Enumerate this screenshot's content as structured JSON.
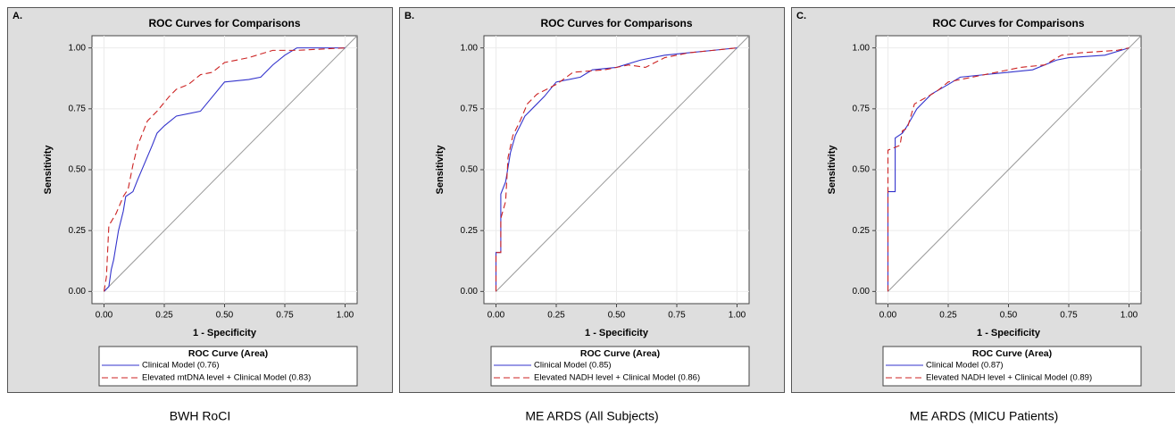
{
  "chart_data": [
    {
      "type": "line",
      "panel_label": "A.",
      "title": "ROC Curves for Comparisons",
      "xlabel": "1 - Specificity",
      "ylabel": "Sensitivity",
      "legend_title": "ROC Curve (Area)",
      "caption": "BWH RoCI",
      "xlim": [
        -0.05,
        1.05
      ],
      "ylim": [
        -0.05,
        1.05
      ],
      "grid": true,
      "xticks": [
        {
          "value": 0,
          "label": "0.00"
        },
        {
          "value": 0.25,
          "label": "0.25"
        },
        {
          "value": 0.5,
          "label": "0.50"
        },
        {
          "value": 0.75,
          "label": "0.75"
        },
        {
          "value": 1,
          "label": "1.00"
        }
      ],
      "yticks": [
        {
          "value": 0,
          "label": "0.00"
        },
        {
          "value": 0.25,
          "label": "0.25"
        },
        {
          "value": 0.5,
          "label": "0.50"
        },
        {
          "value": 0.75,
          "label": "0.75"
        },
        {
          "value": 1,
          "label": "1.00"
        }
      ],
      "series": [
        {
          "name": "Clinical Model  (0.76)",
          "color": "#3333cc",
          "dashed": false,
          "x": [
            0,
            0.02,
            0.03,
            0.04,
            0.06,
            0.08,
            0.09,
            0.12,
            0.14,
            0.17,
            0.2,
            0.22,
            0.25,
            0.3,
            0.4,
            0.45,
            0.5,
            0.6,
            0.65,
            0.7,
            0.75,
            0.8,
            1
          ],
          "values": [
            0,
            0.02,
            0.09,
            0.13,
            0.25,
            0.33,
            0.39,
            0.41,
            0.46,
            0.53,
            0.6,
            0.65,
            0.68,
            0.72,
            0.74,
            0.8,
            0.86,
            0.87,
            0.88,
            0.93,
            0.97,
            1,
            1
          ]
        },
        {
          "name": "Elevated mtDNA level + Clinical Model  (0.83)",
          "color": "#cc2222",
          "dashed": true,
          "x": [
            0,
            0.01,
            0.02,
            0.05,
            0.08,
            0.1,
            0.12,
            0.14,
            0.18,
            0.22,
            0.27,
            0.3,
            0.35,
            0.4,
            0.45,
            0.5,
            0.6,
            0.7,
            0.8,
            1
          ],
          "values": [
            0,
            0.06,
            0.27,
            0.32,
            0.39,
            0.42,
            0.52,
            0.6,
            0.7,
            0.74,
            0.8,
            0.83,
            0.85,
            0.89,
            0.9,
            0.94,
            0.96,
            0.99,
            0.99,
            1
          ]
        }
      ]
    },
    {
      "type": "line",
      "panel_label": "B.",
      "title": "ROC Curves for Comparisons",
      "xlabel": "1 - Specificity",
      "ylabel": "Sensitivity",
      "legend_title": "ROC Curve (Area)",
      "caption": "ME ARDS (All Subjects)",
      "xlim": [
        -0.05,
        1.05
      ],
      "ylim": [
        -0.05,
        1.05
      ],
      "grid": true,
      "xticks": [
        {
          "value": 0,
          "label": "0.00"
        },
        {
          "value": 0.25,
          "label": "0.25"
        },
        {
          "value": 0.5,
          "label": "0.50"
        },
        {
          "value": 0.75,
          "label": "0.75"
        },
        {
          "value": 1,
          "label": "1.00"
        }
      ],
      "yticks": [
        {
          "value": 0,
          "label": "0.00"
        },
        {
          "value": 0.25,
          "label": "0.25"
        },
        {
          "value": 0.5,
          "label": "0.50"
        },
        {
          "value": 0.75,
          "label": "0.75"
        },
        {
          "value": 1,
          "label": "1.00"
        }
      ],
      "series": [
        {
          "name": "Clinical Model  (0.85)",
          "color": "#3333cc",
          "dashed": false,
          "x": [
            0,
            0,
            0.02,
            0.02,
            0.04,
            0.06,
            0.08,
            0.1,
            0.12,
            0.15,
            0.2,
            0.25,
            0.35,
            0.4,
            0.5,
            0.6,
            0.7,
            0.8,
            0.9,
            1
          ],
          "values": [
            0,
            0.16,
            0.16,
            0.4,
            0.45,
            0.57,
            0.64,
            0.68,
            0.72,
            0.75,
            0.8,
            0.86,
            0.88,
            0.91,
            0.92,
            0.95,
            0.97,
            0.98,
            0.99,
            1
          ]
        },
        {
          "name": "Elevated NADH level + Clinical Model  (0.86)",
          "color": "#cc2222",
          "dashed": true,
          "x": [
            0,
            0,
            0.02,
            0.02,
            0.04,
            0.05,
            0.07,
            0.1,
            0.13,
            0.17,
            0.25,
            0.32,
            0.45,
            0.55,
            0.62,
            0.7,
            0.8,
            0.9,
            1
          ],
          "values": [
            0,
            0.16,
            0.16,
            0.3,
            0.37,
            0.55,
            0.64,
            0.7,
            0.77,
            0.81,
            0.85,
            0.9,
            0.91,
            0.93,
            0.92,
            0.96,
            0.98,
            0.99,
            1
          ]
        }
      ]
    },
    {
      "type": "line",
      "panel_label": "C.",
      "title": "ROC Curves for Comparisons",
      "xlabel": "1 - Specificity",
      "ylabel": "Sensitivity",
      "legend_title": "ROC Curve (Area)",
      "caption": "ME ARDS (MICU Patients)",
      "xlim": [
        -0.05,
        1.05
      ],
      "ylim": [
        -0.05,
        1.05
      ],
      "grid": true,
      "xticks": [
        {
          "value": 0,
          "label": "0.00"
        },
        {
          "value": 0.25,
          "label": "0.25"
        },
        {
          "value": 0.5,
          "label": "0.50"
        },
        {
          "value": 0.75,
          "label": "0.75"
        },
        {
          "value": 1,
          "label": "1.00"
        }
      ],
      "yticks": [
        {
          "value": 0,
          "label": "0.00"
        },
        {
          "value": 0.25,
          "label": "0.25"
        },
        {
          "value": 0.5,
          "label": "0.50"
        },
        {
          "value": 0.75,
          "label": "0.75"
        },
        {
          "value": 1,
          "label": "1.00"
        }
      ],
      "series": [
        {
          "name": "Clinical Model  (0.87)",
          "color": "#3333cc",
          "dashed": false,
          "x": [
            0,
            0,
            0.03,
            0.03,
            0.06,
            0.08,
            0.12,
            0.18,
            0.25,
            0.3,
            0.4,
            0.5,
            0.6,
            0.7,
            0.75,
            0.9,
            1
          ],
          "values": [
            0,
            0.41,
            0.41,
            0.63,
            0.65,
            0.68,
            0.75,
            0.81,
            0.85,
            0.88,
            0.89,
            0.9,
            0.91,
            0.95,
            0.96,
            0.97,
            1
          ]
        },
        {
          "name": "Elevated NADH level + Clinical Model  (0.89)",
          "color": "#cc2222",
          "dashed": true,
          "x": [
            0,
            0,
            0.05,
            0.06,
            0.08,
            0.11,
            0.2,
            0.25,
            0.35,
            0.45,
            0.55,
            0.65,
            0.72,
            0.8,
            0.95,
            1
          ],
          "values": [
            0,
            0.58,
            0.6,
            0.66,
            0.67,
            0.77,
            0.82,
            0.86,
            0.88,
            0.9,
            0.92,
            0.93,
            0.97,
            0.98,
            0.99,
            1
          ]
        }
      ]
    }
  ]
}
